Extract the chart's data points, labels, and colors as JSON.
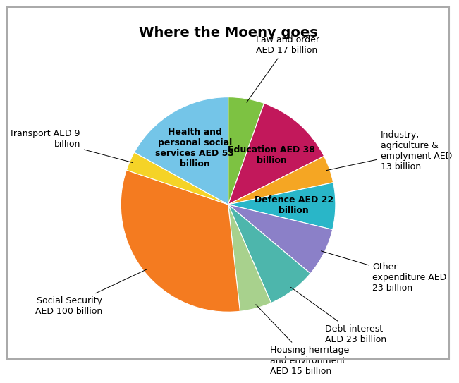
{
  "title": "Where the Moeny goes",
  "slices": [
    {
      "label": "Law and order\nAED 17 billion",
      "value": 17,
      "color": "#7dc242",
      "label_inside": false
    },
    {
      "label": "Education AED 38\nbillion",
      "value": 38,
      "color": "#c2185b",
      "label_inside": true
    },
    {
      "label": "Industry,\nagriculture &\nemplyment AED\n13 billion",
      "value": 13,
      "color": "#f5a623",
      "label_inside": false
    },
    {
      "label": "Defence AED 22\nbillion",
      "value": 22,
      "color": "#29b6c8",
      "label_inside": true
    },
    {
      "label": "Other\nexpenditure AED\n23 billion",
      "value": 23,
      "color": "#8b80c8",
      "label_inside": false
    },
    {
      "label": "Debt interest\nAED 23 billion",
      "value": 23,
      "color": "#4db6ac",
      "label_inside": false
    },
    {
      "label": "Housing herritage\nand environment\nAED 15 billion",
      "value": 15,
      "color": "#a8d18d",
      "label_inside": false
    },
    {
      "label": "Social Security\nAED 100 billion",
      "value": 100,
      "color": "#f47b20",
      "label_inside": false
    },
    {
      "label": "Transport AED 9\nbillion",
      "value": 9,
      "color": "#f5d327",
      "label_inside": false
    },
    {
      "label": "Health and\npersonal social\nservices AED 53\nbillion",
      "value": 53,
      "color": "#74c5e8",
      "label_inside": true
    }
  ],
  "title_fontsize": 14,
  "label_fontsize": 9,
  "background_color": "#ffffff",
  "border_color": "#aaaaaa"
}
